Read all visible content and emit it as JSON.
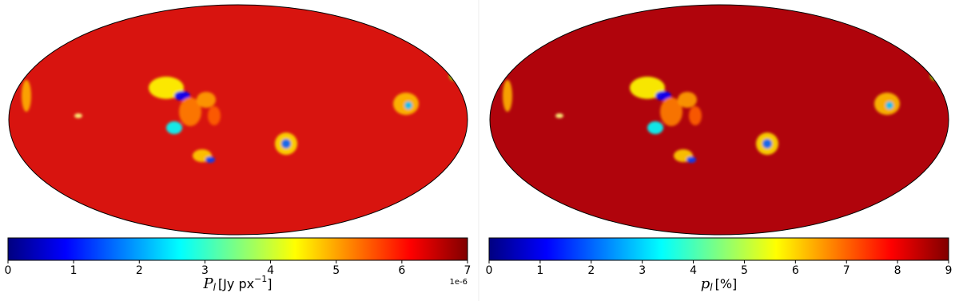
{
  "chart_data": [
    {
      "type": "skymap",
      "color": "#d8140f",
      "colorbar_label": {
        "symbol": "P",
        "subscript": "l",
        "unit": "[Jy px",
        "unit_exponent": "−1",
        "unit_close": "]"
      },
      "clim": [
        0,
        7
      ],
      "cticks": [
        0,
        1,
        2,
        3,
        4,
        5,
        6,
        7
      ],
      "offset_text": "1e-6"
    },
    {
      "type": "skymap",
      "color": "#b0040c",
      "colorbar_label": {
        "symbol": "p",
        "subscript": "l",
        "unit": "[%",
        "unit_exponent": null,
        "unit_close": "]"
      },
      "clim": [
        0,
        9
      ],
      "cticks": [
        0,
        1,
        2,
        3,
        4,
        5,
        6,
        7,
        8,
        9
      ]
    }
  ]
}
